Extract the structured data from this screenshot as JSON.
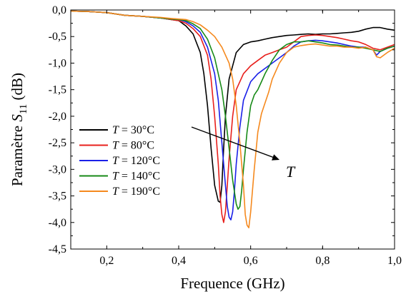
{
  "chart_data": {
    "type": "line",
    "xlabel": "Frequence (GHz)",
    "ylabel_prefix": "Paramètre ",
    "ylabel_var": "S",
    "ylabel_sub": "11",
    "ylabel_unit": " (dB)",
    "xlim": [
      0.1,
      1.0
    ],
    "ylim": [
      -4.5,
      0.0
    ],
    "x_ticks": [
      0.2,
      0.4,
      0.6,
      0.8,
      1.0
    ],
    "x_tick_labels": [
      "0,2",
      "0,4",
      "0,6",
      "0,8",
      "1,0"
    ],
    "y_ticks": [
      0.0,
      -0.5,
      -1.0,
      -1.5,
      -2.0,
      -2.5,
      -3.0,
      -3.5,
      -4.0,
      -4.5
    ],
    "y_tick_labels": [
      "0,0",
      "-0,5",
      "-1,0",
      "-1,5",
      "-2,0",
      "-2,5",
      "-3,0",
      "-3,5",
      "-4,0",
      "-4,5"
    ],
    "grid": false,
    "legend_position": "left",
    "annotation": {
      "label": "T",
      "from": [
        0.68,
        -2.2
      ],
      "to": [
        0.87,
        -2.75
      ]
    },
    "series": [
      {
        "name": "T = 30°C",
        "var": "T",
        "value": " = 30°C",
        "color": "#000000",
        "x": [
          0.1,
          0.15,
          0.2,
          0.25,
          0.3,
          0.35,
          0.38,
          0.4,
          0.42,
          0.44,
          0.46,
          0.47,
          0.48,
          0.49,
          0.5,
          0.51,
          0.515,
          0.52,
          0.525,
          0.53,
          0.54,
          0.56,
          0.58,
          0.6,
          0.62,
          0.64,
          0.66,
          0.68,
          0.7,
          0.72,
          0.74,
          0.76,
          0.78,
          0.8,
          0.82,
          0.84,
          0.86,
          0.88,
          0.9,
          0.92,
          0.94,
          0.96,
          0.98,
          1.0
        ],
        "y": [
          -0.02,
          -0.03,
          -0.05,
          -0.1,
          -0.12,
          -0.15,
          -0.18,
          -0.2,
          -0.3,
          -0.45,
          -0.8,
          -1.2,
          -1.8,
          -2.6,
          -3.3,
          -3.6,
          -3.62,
          -3.3,
          -2.6,
          -2.0,
          -1.3,
          -0.8,
          -0.65,
          -0.6,
          -0.58,
          -0.55,
          -0.52,
          -0.5,
          -0.48,
          -0.47,
          -0.46,
          -0.45,
          -0.46,
          -0.45,
          -0.45,
          -0.44,
          -0.43,
          -0.42,
          -0.4,
          -0.36,
          -0.33,
          -0.33,
          -0.36,
          -0.38
        ]
      },
      {
        "name": "T = 80°C",
        "var": "T",
        "value": " = 80°C",
        "color": "#e8201c",
        "x": [
          0.1,
          0.15,
          0.2,
          0.25,
          0.3,
          0.35,
          0.38,
          0.4,
          0.42,
          0.44,
          0.46,
          0.48,
          0.49,
          0.5,
          0.51,
          0.515,
          0.52,
          0.525,
          0.53,
          0.535,
          0.54,
          0.55,
          0.56,
          0.58,
          0.6,
          0.62,
          0.64,
          0.66,
          0.68,
          0.7,
          0.72,
          0.74,
          0.76,
          0.78,
          0.8,
          0.82,
          0.84,
          0.86,
          0.88,
          0.9,
          0.92,
          0.94,
          0.96,
          0.98,
          1.0
        ],
        "y": [
          -0.02,
          -0.03,
          -0.05,
          -0.1,
          -0.12,
          -0.15,
          -0.18,
          -0.2,
          -0.25,
          -0.35,
          -0.5,
          -0.85,
          -1.3,
          -2.0,
          -2.9,
          -3.5,
          -3.85,
          -4.0,
          -3.8,
          -3.3,
          -2.8,
          -2.0,
          -1.5,
          -1.2,
          -1.05,
          -0.95,
          -0.85,
          -0.8,
          -0.75,
          -0.7,
          -0.6,
          -0.5,
          -0.48,
          -0.47,
          -0.48,
          -0.5,
          -0.52,
          -0.55,
          -0.58,
          -0.6,
          -0.65,
          -0.72,
          -0.75,
          -0.7,
          -0.65
        ]
      },
      {
        "name": "T = 120°C",
        "var": "T",
        "value": " = 120°C",
        "color": "#1a20e8",
        "x": [
          0.1,
          0.15,
          0.2,
          0.25,
          0.3,
          0.35,
          0.38,
          0.4,
          0.42,
          0.44,
          0.46,
          0.48,
          0.5,
          0.51,
          0.52,
          0.53,
          0.535,
          0.54,
          0.545,
          0.55,
          0.555,
          0.56,
          0.57,
          0.58,
          0.6,
          0.62,
          0.64,
          0.66,
          0.68,
          0.7,
          0.72,
          0.74,
          0.76,
          0.78,
          0.8,
          0.82,
          0.84,
          0.86,
          0.88,
          0.9,
          0.92,
          0.94,
          0.95,
          0.96,
          0.98,
          1.0
        ],
        "y": [
          -0.02,
          -0.03,
          -0.05,
          -0.1,
          -0.12,
          -0.15,
          -0.17,
          -0.18,
          -0.22,
          -0.3,
          -0.42,
          -0.7,
          -1.2,
          -1.7,
          -2.5,
          -3.3,
          -3.7,
          -3.9,
          -3.95,
          -3.8,
          -3.4,
          -2.9,
          -2.2,
          -1.7,
          -1.35,
          -1.2,
          -1.1,
          -1.0,
          -0.9,
          -0.8,
          -0.68,
          -0.6,
          -0.58,
          -0.57,
          -0.58,
          -0.6,
          -0.62,
          -0.65,
          -0.68,
          -0.7,
          -0.7,
          -0.75,
          -0.85,
          -0.78,
          -0.72,
          -0.68
        ]
      },
      {
        "name": "T = 140°C",
        "var": "T",
        "value": " = 140°C",
        "color": "#178a17",
        "x": [
          0.1,
          0.15,
          0.2,
          0.25,
          0.3,
          0.35,
          0.38,
          0.4,
          0.42,
          0.44,
          0.46,
          0.48,
          0.5,
          0.52,
          0.53,
          0.54,
          0.55,
          0.56,
          0.565,
          0.57,
          0.575,
          0.58,
          0.59,
          0.6,
          0.61,
          0.62,
          0.63,
          0.64,
          0.66,
          0.68,
          0.7,
          0.72,
          0.74,
          0.76,
          0.78,
          0.8,
          0.82,
          0.84,
          0.86,
          0.88,
          0.9,
          0.92,
          0.94,
          0.96,
          0.98,
          1.0
        ],
        "y": [
          -0.02,
          -0.03,
          -0.05,
          -0.1,
          -0.12,
          -0.15,
          -0.17,
          -0.18,
          -0.2,
          -0.26,
          -0.35,
          -0.55,
          -0.9,
          -1.5,
          -2.0,
          -2.6,
          -3.2,
          -3.65,
          -3.75,
          -3.7,
          -3.4,
          -3.0,
          -2.3,
          -1.8,
          -1.6,
          -1.5,
          -1.35,
          -1.2,
          -0.95,
          -0.75,
          -0.65,
          -0.6,
          -0.6,
          -0.58,
          -0.6,
          -0.62,
          -0.65,
          -0.66,
          -0.68,
          -0.7,
          -0.7,
          -0.72,
          -0.75,
          -0.78,
          -0.72,
          -0.68
        ]
      },
      {
        "name": "T = 190°C",
        "var": "T",
        "value": " = 190°C",
        "color": "#f5891e",
        "x": [
          0.1,
          0.15,
          0.2,
          0.25,
          0.3,
          0.35,
          0.38,
          0.4,
          0.42,
          0.44,
          0.46,
          0.48,
          0.5,
          0.52,
          0.54,
          0.55,
          0.56,
          0.57,
          0.58,
          0.585,
          0.59,
          0.595,
          0.6,
          0.61,
          0.62,
          0.63,
          0.64,
          0.65,
          0.66,
          0.68,
          0.7,
          0.72,
          0.74,
          0.76,
          0.78,
          0.8,
          0.82,
          0.84,
          0.86,
          0.88,
          0.9,
          0.92,
          0.94,
          0.95,
          0.96,
          0.98,
          1.0
        ],
        "y": [
          -0.02,
          -0.03,
          -0.05,
          -0.1,
          -0.12,
          -0.14,
          -0.16,
          -0.17,
          -0.18,
          -0.22,
          -0.28,
          -0.38,
          -0.5,
          -0.7,
          -1.0,
          -1.3,
          -1.8,
          -2.5,
          -3.3,
          -3.85,
          -4.05,
          -4.1,
          -3.8,
          -3.0,
          -2.3,
          -1.95,
          -1.75,
          -1.55,
          -1.3,
          -1.0,
          -0.8,
          -0.7,
          -0.67,
          -0.65,
          -0.64,
          -0.66,
          -0.68,
          -0.68,
          -0.7,
          -0.7,
          -0.72,
          -0.7,
          -0.75,
          -0.88,
          -0.9,
          -0.8,
          -0.72
        ]
      }
    ]
  }
}
